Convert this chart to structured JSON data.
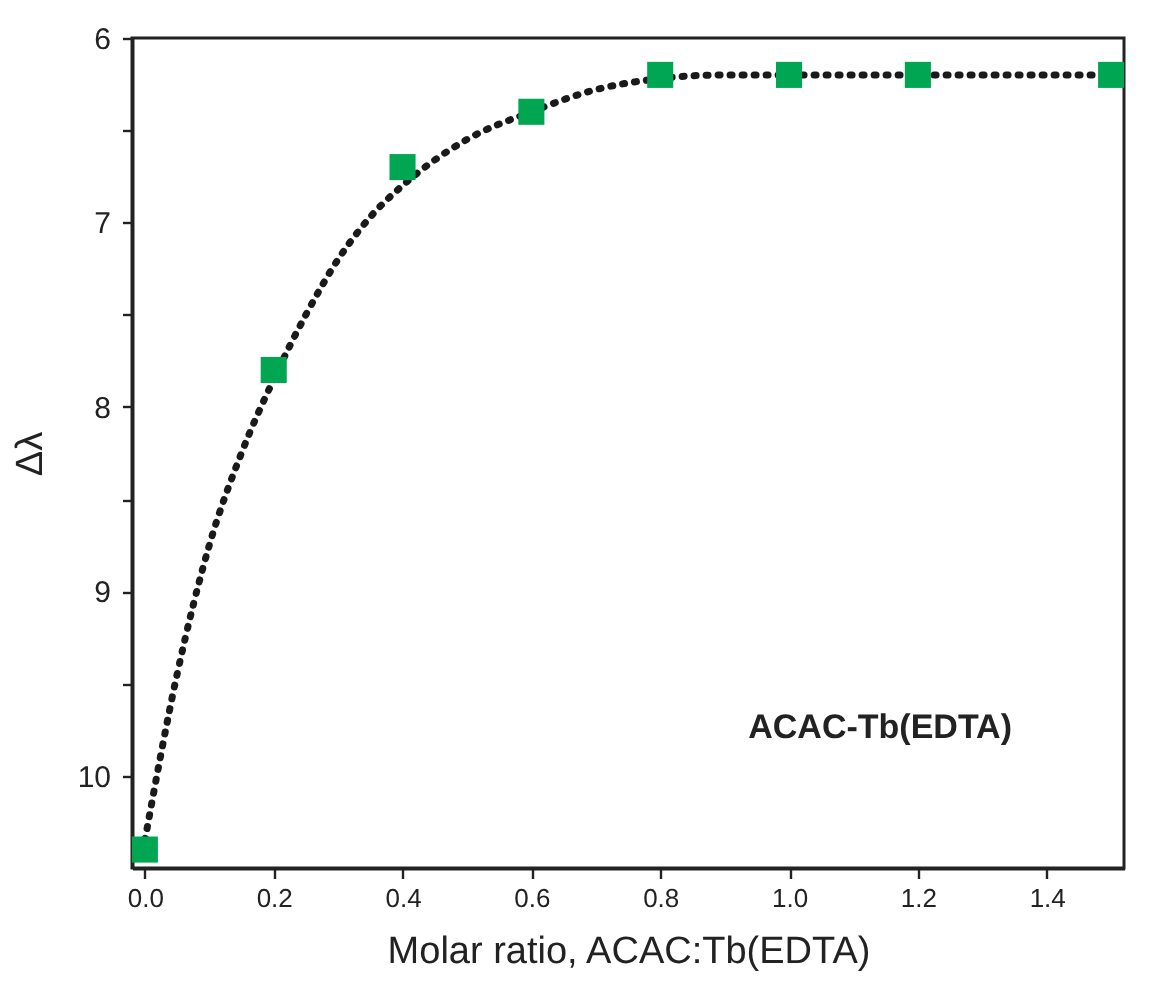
{
  "chart_data": {
    "type": "scatter",
    "xlabel": "Molar ratio, ACAC:Tb(EDTA)",
    "ylabel": "Δλ",
    "annotations": [
      "ACAC-Tb(EDTA)"
    ],
    "xlim": [
      -0.02,
      1.52
    ],
    "ylim": [
      10.5,
      6
    ],
    "xticks": [
      {
        "value": 0,
        "label": "0.0"
      },
      0.2,
      0.4,
      0.6,
      0.8,
      {
        "value": 1,
        "label": "1.0"
      },
      1.2,
      1.4
    ],
    "yticks": [
      6,
      7,
      8,
      9,
      10,
      {
        "value": 6.5,
        "label": null
      },
      {
        "value": 7.5,
        "label": null
      },
      {
        "value": 8.5,
        "label": null
      },
      {
        "value": 9.5,
        "label": null
      }
    ],
    "grid": false,
    "series": [
      {
        "type": "line",
        "color": "#1a1a1a",
        "line_style": "dotted",
        "marker": "none",
        "x": [
          0,
          0.05,
          0.1,
          0.15,
          0.2,
          0.25,
          0.3,
          0.35,
          0.4,
          0.5,
          0.6,
          0.7,
          0.8,
          0.9,
          1.0,
          1.2,
          1.5
        ],
        "values": [
          10.35,
          9.45,
          8.75,
          8.25,
          7.85,
          7.5,
          7.2,
          6.97,
          6.8,
          6.55,
          6.4,
          6.28,
          6.22,
          6.2,
          6.2,
          6.2,
          6.2
        ]
      },
      {
        "color": "#00a651",
        "marker": "square",
        "x": [
          0,
          0.2,
          0.4,
          0.6,
          0.8,
          1.0,
          1.2,
          1.5
        ],
        "values": [
          10.4,
          7.8,
          6.7,
          6.4,
          6.2,
          6.2,
          6.2,
          6.2
        ]
      }
    ]
  }
}
